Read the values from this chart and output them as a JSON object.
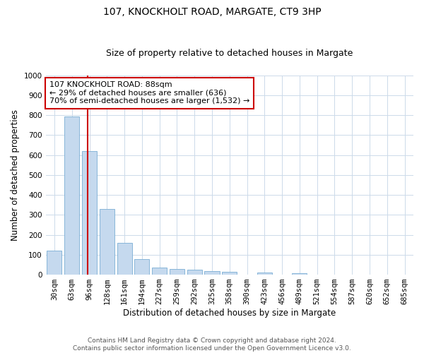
{
  "title1": "107, KNOCKHOLT ROAD, MARGATE, CT9 3HP",
  "title2": "Size of property relative to detached houses in Margate",
  "xlabel": "Distribution of detached houses by size in Margate",
  "ylabel": "Number of detached properties",
  "categories": [
    "30sqm",
    "63sqm",
    "96sqm",
    "128sqm",
    "161sqm",
    "194sqm",
    "227sqm",
    "259sqm",
    "292sqm",
    "325sqm",
    "358sqm",
    "390sqm",
    "423sqm",
    "456sqm",
    "489sqm",
    "521sqm",
    "554sqm",
    "587sqm",
    "620sqm",
    "652sqm",
    "685sqm"
  ],
  "values": [
    120,
    795,
    620,
    330,
    160,
    78,
    35,
    27,
    25,
    18,
    13,
    0,
    10,
    0,
    9,
    0,
    0,
    0,
    0,
    0,
    0
  ],
  "bar_color": "#c5d9ee",
  "bar_edge_color": "#7aadd4",
  "vline_color": "#cc0000",
  "vline_x_index": 2,
  "annotation_text": "107 KNOCKHOLT ROAD: 88sqm\n← 29% of detached houses are smaller (636)\n70% of semi-detached houses are larger (1,532) →",
  "annotation_box_color": "#ffffff",
  "annotation_box_edge_color": "#cc0000",
  "ylim": [
    0,
    1000
  ],
  "yticks": [
    0,
    100,
    200,
    300,
    400,
    500,
    600,
    700,
    800,
    900,
    1000
  ],
  "footer": "Contains HM Land Registry data © Crown copyright and database right 2024.\nContains public sector information licensed under the Open Government Licence v3.0.",
  "background_color": "#ffffff",
  "grid_color": "#ccdaea",
  "title1_fontsize": 10,
  "title2_fontsize": 9,
  "axis_label_fontsize": 8.5,
  "tick_fontsize": 7.5,
  "annotation_fontsize": 8,
  "footer_fontsize": 6.5
}
